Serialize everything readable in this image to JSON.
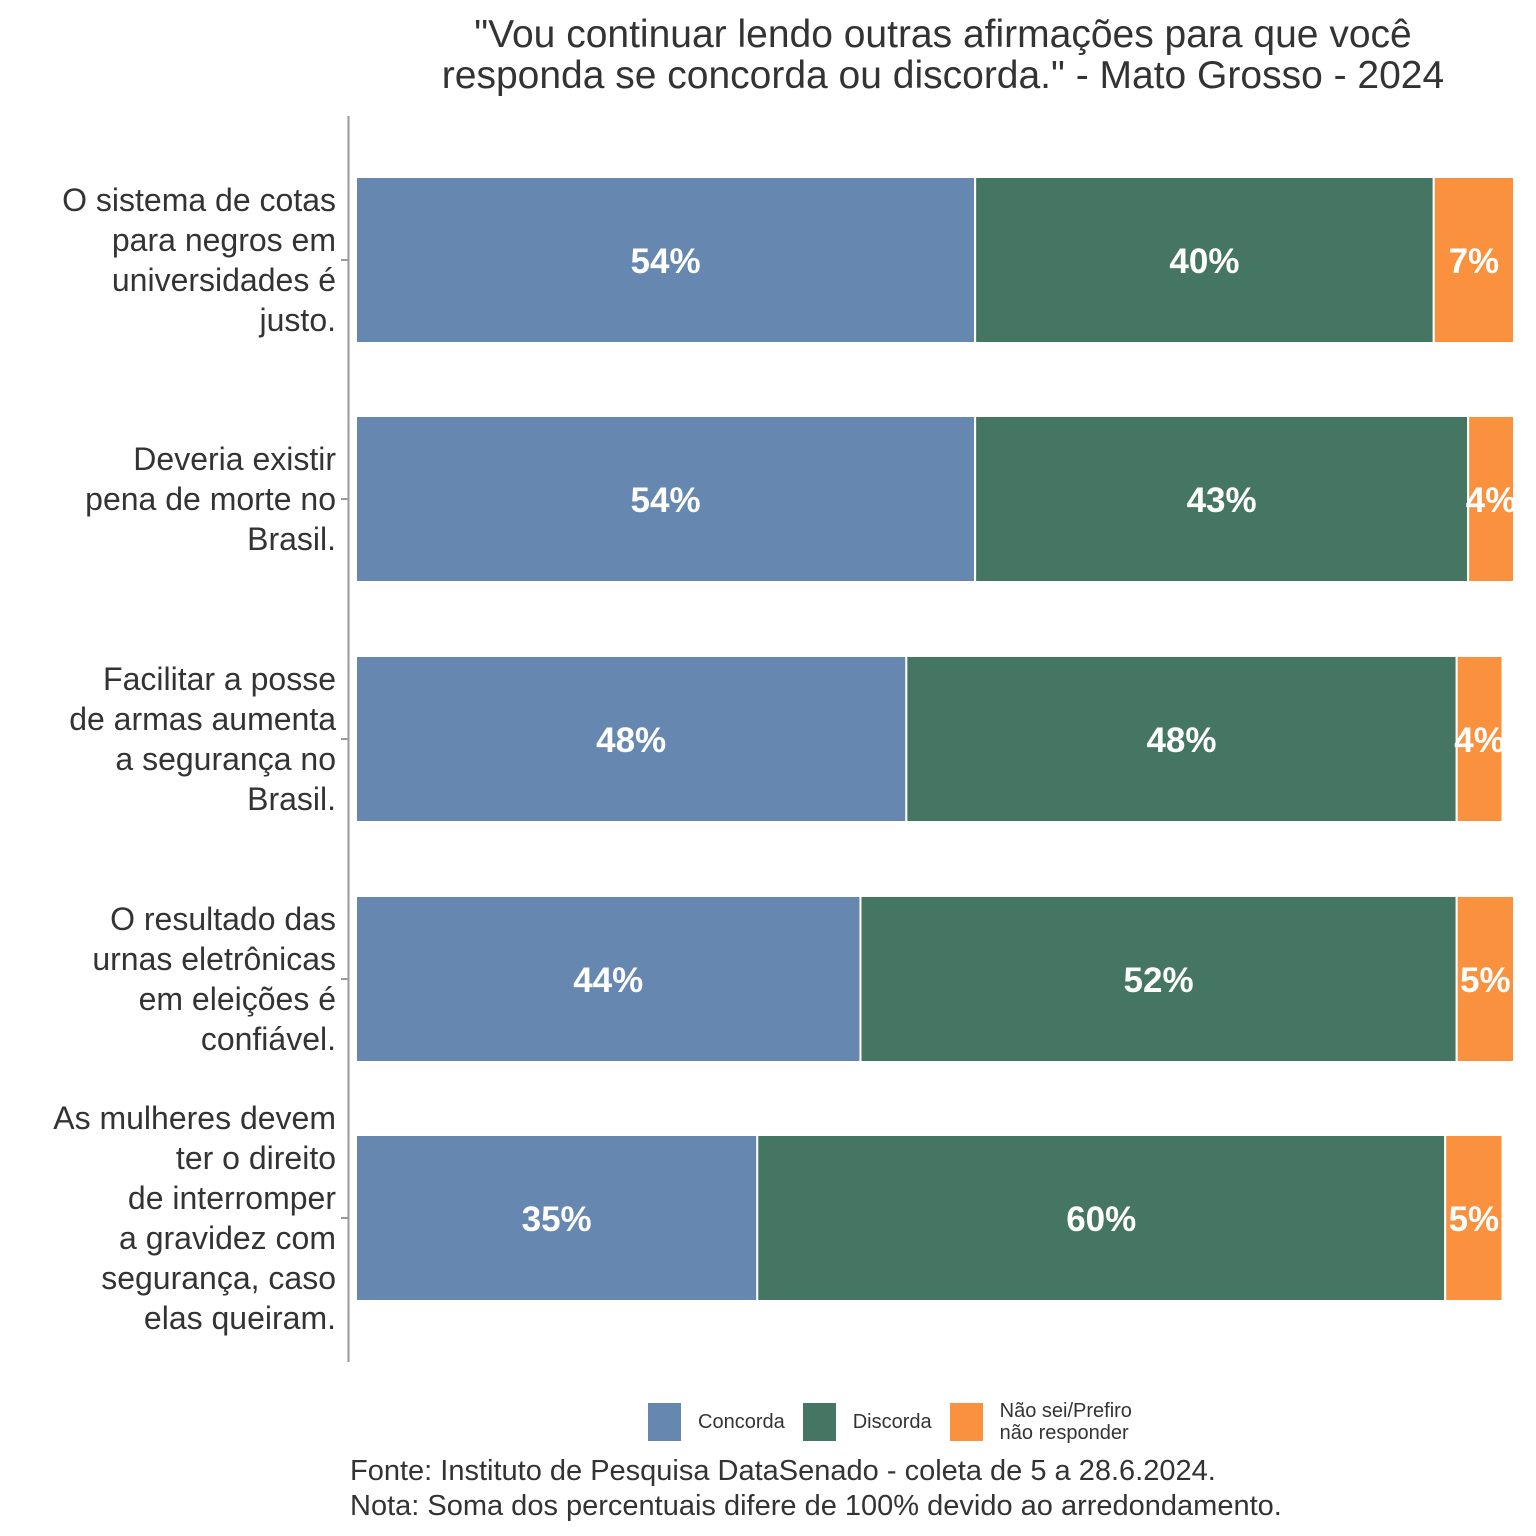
{
  "chart_data": {
    "type": "bar",
    "orientation": "horizontal",
    "stacked": true,
    "title": "\"Vou continuar lendo outras afirmações para que você responda se concorda ou discorda.\" - Mato Grosso - 2024",
    "title_lines": [
      "\"Vou continuar lendo outras afirmações para que você",
      "responda se concorda ou discorda.\" - Mato Grosso - 2024"
    ],
    "xlabel": "",
    "ylabel": "",
    "xlim": [
      0,
      101
    ],
    "grid": false,
    "legend_position": "bottom",
    "categories": [
      {
        "label": "O sistema de cotas para negros em universidades é justo.",
        "lines": [
          "O sistema de cotas",
          "para negros em",
          "universidades é",
          "justo."
        ]
      },
      {
        "label": "Deveria existir pena de morte no Brasil.",
        "lines": [
          "Deveria existir",
          "pena de morte no",
          "Brasil."
        ]
      },
      {
        "label": "Facilitar a posse de armas aumenta a segurança no Brasil.",
        "lines": [
          "Facilitar a posse",
          "de armas aumenta",
          "a segurança no",
          "Brasil."
        ]
      },
      {
        "label": "O resultado das urnas eletrônicas em eleições é confiável.",
        "lines": [
          "O resultado das",
          "urnas eletrônicas",
          "em eleições é",
          "confiável."
        ]
      },
      {
        "label": "As mulheres devem ter o direito de interromper a gravidez com segurança, caso elas queiram.",
        "lines": [
          "As mulheres devem",
          "ter o direito",
          "de interromper",
          "a gravidez com",
          "segurança, caso",
          "elas queiram."
        ]
      }
    ],
    "series": [
      {
        "name": "Concorda",
        "color": "#6688b0",
        "values": [
          54,
          54,
          48,
          44,
          35
        ],
        "labels": [
          "54%",
          "54%",
          "48%",
          "44%",
          "35%"
        ]
      },
      {
        "name": "Discorda",
        "color": "#457563",
        "values": [
          40,
          43,
          48,
          52,
          60
        ],
        "labels": [
          "40%",
          "43%",
          "48%",
          "52%",
          "60%"
        ]
      },
      {
        "name": "Não sei/Prefiro não responder",
        "color": "#fa913e",
        "values": [
          7,
          4,
          4,
          5,
          5
        ],
        "labels": [
          "7%",
          "4%",
          "4%",
          "5%",
          "5%"
        ]
      }
    ],
    "legend": [
      {
        "lines": [
          "Concorda"
        ]
      },
      {
        "lines": [
          "Discorda"
        ]
      },
      {
        "lines": [
          "Não sei/Prefiro",
          "não responder"
        ]
      }
    ],
    "caption_lines": [
      "Fonte: Instituto de Pesquisa DataSenado - coleta de 5 a 28.6.2024.",
      "Nota: Soma dos percentuais difere de 100% devido ao arredondamento."
    ]
  }
}
